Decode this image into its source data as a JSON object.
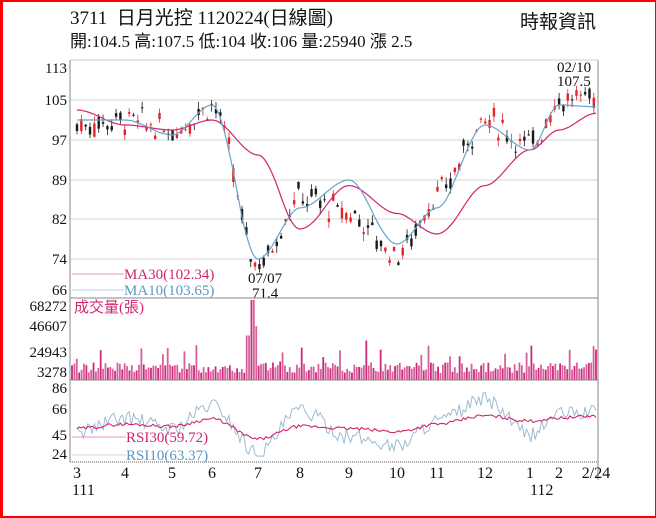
{
  "header": {
    "title": "3711  日月光控 1120224(日線圖)",
    "quote": "開:104.5 高:107.5 低:104 收:106 量:25940 漲 2.5",
    "source": "時報資訊"
  },
  "colors": {
    "frame": "#ff0000",
    "up_candle": "#e0262b",
    "down_candle": "#1a1a1a",
    "ma30": "#d0256e",
    "ma10": "#6aa3c8",
    "volume": "#cc2a7a",
    "rsi30": "#d0256e",
    "rsi10": "#9bbbd3",
    "grid": "#cccccc"
  },
  "chart_data": [
    {
      "type": "candlestick",
      "title": "3711 日月光控 1120224(日線圖)",
      "ylabel": "",
      "yticks": [
        66,
        74,
        82,
        89,
        97,
        105,
        113
      ],
      "ylim": [
        66,
        113
      ],
      "grid": true,
      "x_month_labels": [
        "3",
        "4",
        "5",
        "6",
        "7",
        "8",
        "9",
        "10",
        "11",
        "12",
        "1",
        "2",
        "2/24"
      ],
      "x_year_labels": [
        {
          "at": "3",
          "label": "111"
        },
        {
          "at": "1",
          "label": "112"
        }
      ],
      "annotations": [
        {
          "date": "07/07",
          "value": "71.4",
          "type": "low"
        },
        {
          "date": "02/10",
          "value": "107.5",
          "type": "high"
        }
      ],
      "legend": [
        {
          "name": "MA30",
          "value": "102.34"
        },
        {
          "name": "MA10",
          "value": "103.65"
        }
      ],
      "series": [
        {
          "name": "Close",
          "x": [
            "3",
            "4",
            "5",
            "6",
            "7",
            "8",
            "9",
            "10",
            "11",
            "12",
            "1",
            "2",
            "2/24"
          ],
          "values": [
            100,
            101,
            99,
            104,
            73,
            86,
            83,
            75,
            86,
            101,
            96,
            105,
            106
          ]
        },
        {
          "name": "MA30",
          "x": [
            "3",
            "4",
            "5",
            "6",
            "7",
            "8",
            "9",
            "10",
            "11",
            "12",
            "1",
            "2",
            "2/24"
          ],
          "values": [
            103,
            100,
            99,
            101,
            94,
            80,
            88,
            83,
            79,
            88,
            95,
            99,
            102.34
          ]
        },
        {
          "name": "MA10",
          "x": [
            "3",
            "4",
            "5",
            "6",
            "7",
            "8",
            "9",
            "10",
            "11",
            "12",
            "1",
            "2",
            "2/24"
          ],
          "values": [
            101,
            101,
            98,
            104,
            74,
            84,
            89,
            77,
            84,
            100,
            95,
            104,
            103.65
          ]
        }
      ]
    },
    {
      "type": "bar",
      "title": "成交量(張)",
      "yticks": [
        3278,
        24943,
        46607,
        68272
      ],
      "ylim": [
        0,
        68272
      ],
      "peak": {
        "date": "07/07",
        "value": 68272
      },
      "last_value": 25940
    },
    {
      "type": "line",
      "title": "RSI",
      "yticks": [
        24,
        45,
        66,
        86
      ],
      "ylim": [
        20,
        90
      ],
      "legend": [
        {
          "name": "RSI30",
          "value": "59.72"
        },
        {
          "name": "RSI10",
          "value": "63.37"
        }
      ],
      "series": [
        {
          "name": "RSI30",
          "x": [
            "3",
            "4",
            "5",
            "6",
            "7",
            "8",
            "9",
            "10",
            "11",
            "12",
            "1",
            "2",
            "2/24"
          ],
          "values": [
            48,
            52,
            50,
            57,
            38,
            50,
            48,
            45,
            52,
            60,
            55,
            58,
            59.72
          ]
        },
        {
          "name": "RSI10",
          "x": [
            "3",
            "4",
            "5",
            "6",
            "7",
            "8",
            "9",
            "10",
            "11",
            "12",
            "1",
            "2",
            "2/24"
          ],
          "values": [
            45,
            58,
            48,
            70,
            25,
            65,
            40,
            32,
            55,
            75,
            42,
            62,
            63.37
          ]
        }
      ]
    }
  ],
  "labels": {
    "price_ticks": [
      "113",
      "105",
      "97",
      "89",
      "82",
      "74",
      "66"
    ],
    "vol_ticks": [
      "68272",
      "46607",
      "24943",
      "3278"
    ],
    "rsi_ticks": [
      "86",
      "66",
      "45",
      "24"
    ],
    "months": [
      "3",
      "4",
      "5",
      "6",
      "7",
      "8",
      "9",
      "10",
      "11",
      "12",
      "1",
      "2",
      "2/24"
    ],
    "year_111": "111",
    "year_112": "112",
    "low_date": "07/07",
    "low_value": "71.4",
    "high_date": "02/10",
    "high_value": "107.5",
    "ma30_legend": "MA30(102.34)",
    "ma10_legend": "MA10(103.65)",
    "vol_title": "成交量(張)",
    "rsi30_legend": "RSI30(59.72)",
    "rsi10_legend": "RSI10(63.37)"
  }
}
